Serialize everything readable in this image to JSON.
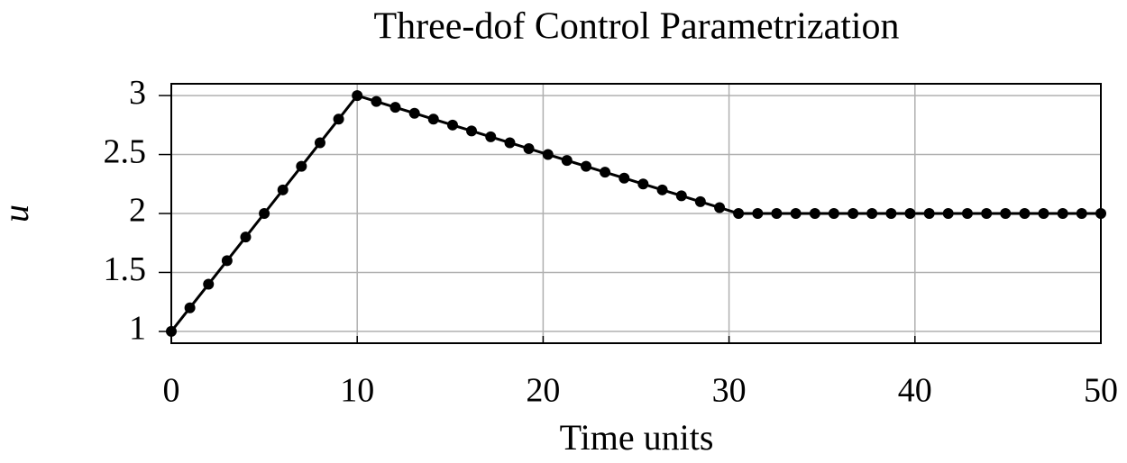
{
  "chart_data": {
    "type": "line",
    "title": "Three-dof Control Parametrization",
    "xlabel": "Time units",
    "ylabel": "u",
    "x": [
      0,
      1,
      2,
      3,
      4,
      5,
      6,
      7,
      8,
      9,
      10,
      11.03,
      12.05,
      13.08,
      14.1,
      15.13,
      16.15,
      17.18,
      18.21,
      19.23,
      20.26,
      21.28,
      22.31,
      23.33,
      24.36,
      25.38,
      26.41,
      27.44,
      28.46,
      29.49,
      30.51,
      31.54,
      32.56,
      33.59,
      34.62,
      35.64,
      36.67,
      37.69,
      38.72,
      39.74,
      40.77,
      41.79,
      42.82,
      43.85,
      44.87,
      45.9,
      46.92,
      47.95,
      48.97,
      50
    ],
    "series": [
      {
        "color": "#000000",
        "values": [
          1,
          1.2,
          1.4,
          1.6,
          1.8,
          2,
          2.2,
          2.4,
          2.6,
          2.8,
          3,
          2.95,
          2.9,
          2.85,
          2.8,
          2.75,
          2.7,
          2.65,
          2.6,
          2.55,
          2.5,
          2.45,
          2.4,
          2.35,
          2.3,
          2.25,
          2.2,
          2.15,
          2.1,
          2.05,
          2,
          2,
          2,
          2,
          2,
          2,
          2,
          2,
          2,
          2,
          2,
          2,
          2,
          2,
          2,
          2,
          2,
          2,
          2,
          2
        ]
      }
    ],
    "xlim": [
      0,
      50
    ],
    "xticks": [
      0,
      10,
      20,
      30,
      40,
      50
    ],
    "ylim": [
      0.9,
      3.1
    ],
    "yticks": [
      1,
      1.5,
      2,
      2.5,
      3
    ],
    "grid": true
  }
}
